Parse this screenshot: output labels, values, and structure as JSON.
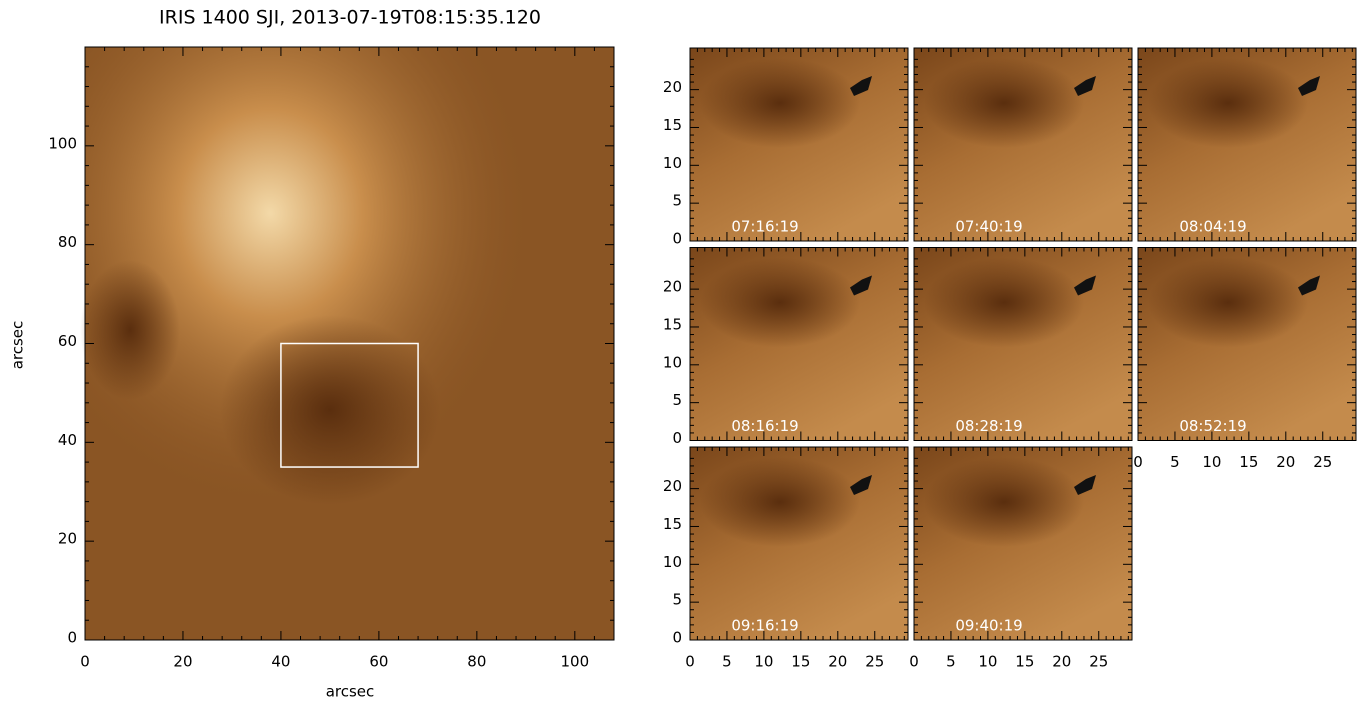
{
  "chart_data": [
    {
      "type": "image",
      "title": "IRIS 1400 SJI, 2013-07-19T08:15:35.120",
      "xlabel": "arcsec",
      "ylabel": "arcsec",
      "xlim": [
        0,
        108
      ],
      "ylim": [
        0,
        120
      ],
      "xticks": [
        0,
        20,
        40,
        60,
        80,
        100
      ],
      "yticks": [
        0,
        20,
        40,
        60,
        80,
        100
      ],
      "box": {
        "x": [
          40,
          68
        ],
        "y": [
          35,
          60
        ]
      },
      "color": "#8a5524"
    },
    {
      "type": "image-grid",
      "xlim": [
        0,
        29.5
      ],
      "ylim": [
        0,
        25.5
      ],
      "xticks": [
        0,
        5,
        10,
        15,
        20,
        25
      ],
      "yticks": [
        0,
        5,
        10,
        15,
        20
      ],
      "panels": [
        "07:16:19",
        "07:40:19",
        "08:04:19",
        "08:16:19",
        "08:28:19",
        "08:52:19",
        "09:16:19",
        "09:40:19"
      ],
      "color": "#8a5524"
    }
  ]
}
